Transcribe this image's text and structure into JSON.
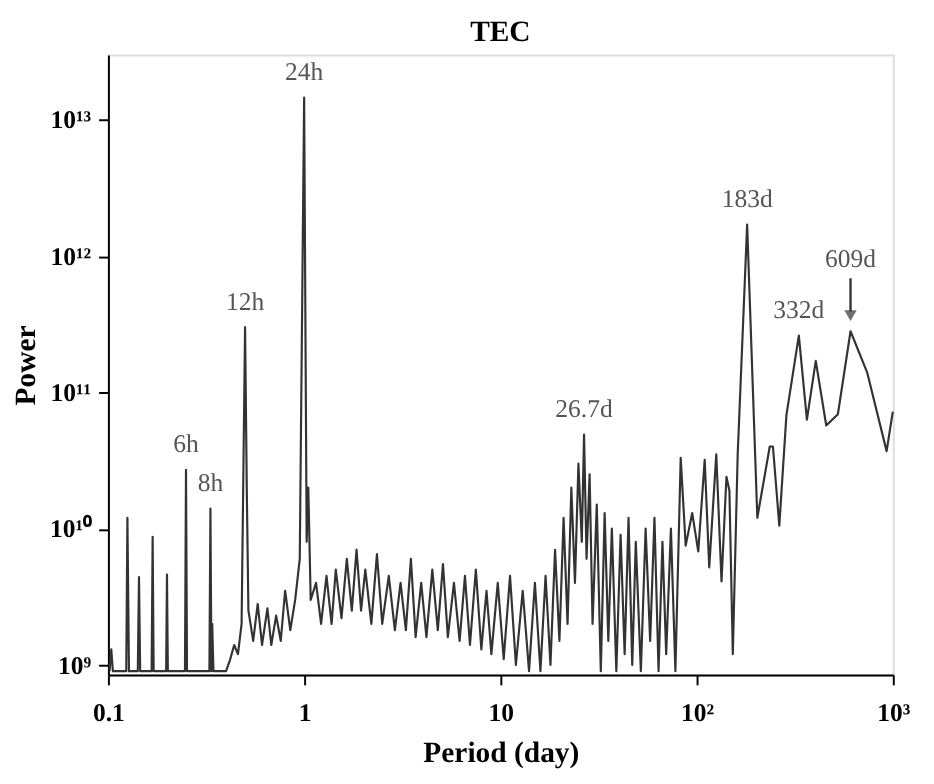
{
  "chart_data": {
    "type": "line",
    "title": "TEC",
    "xlabel": "Period (day)",
    "ylabel": "Power",
    "log": "xy",
    "grid": false,
    "marker": "none",
    "line_style": "solid",
    "xlim": [
      0.1,
      1000
    ],
    "ylim": [
      850000000,
      30000000000000
    ],
    "xticks": [
      0.1,
      1,
      10,
      {
        "value": 100,
        "label": "10²"
      },
      {
        "value": 1000,
        "label": "10³"
      }
    ],
    "yticks": [
      {
        "value": 1000000000,
        "label": "10⁹"
      },
      {
        "value": 10000000000,
        "label": "10¹⁰"
      },
      {
        "value": 100000000000,
        "label": "10¹¹"
      },
      {
        "value": 1000000000000,
        "label": "10¹²"
      },
      {
        "value": 10000000000000,
        "label": "10¹³"
      }
    ],
    "annotations": [
      {
        "text": "6h",
        "x": 0.25,
        "y": 27000000000
      },
      {
        "text": "8h",
        "x": 0.333,
        "y": 14000000000
      },
      {
        "text": "12h",
        "x": 0.5,
        "y": 300000000000
      },
      {
        "text": "24h",
        "x": 1,
        "y": 14500000000000
      },
      {
        "text": "26.7d",
        "x": 26.7,
        "y": 49000000000
      },
      {
        "text": "183d",
        "x": 181,
        "y": 1700000000000
      },
      {
        "text": "332d",
        "x": 332,
        "y": 260000000000
      },
      {
        "text": "609d",
        "x": 609,
        "y": 280000000000
      }
    ],
    "series": [
      {
        "color": "#333333",
        "x": [
          0.102,
          0.104,
          0.106,
          0.124,
          0.1257,
          0.128,
          0.142,
          0.144,
          0.146,
          0.167,
          0.169,
          0.171,
          0.198,
          0.2,
          0.202,
          0.247,
          0.25,
          0.253,
          0.329,
          0.333,
          0.337,
          0.34,
          0.345,
          0.4,
          0.42,
          0.44,
          0.46,
          0.48,
          0.5,
          0.51,
          0.52,
          0.55,
          0.58,
          0.61,
          0.65,
          0.68,
          0.72,
          0.76,
          0.8,
          0.85,
          0.9,
          0.95,
          1.0,
          1.03,
          1.05,
          1.08,
          1.15,
          1.22,
          1.3,
          1.38,
          1.45,
          1.55,
          1.65,
          1.75,
          1.85,
          1.95,
          2.05,
          2.2,
          2.35,
          2.5,
          2.7,
          2.9,
          3.1,
          3.3,
          3.5,
          3.7,
          3.95,
          4.2,
          4.5,
          4.8,
          5.1,
          5.4,
          5.8,
          6.2,
          6.6,
          7.0,
          7.5,
          8.0,
          8.5,
          9.0,
          9.7,
          10.4,
          11.2,
          12,
          13,
          14,
          15,
          16,
          17,
          18,
          19,
          20,
          21,
          22,
          23,
          24,
          25,
          26,
          26.7,
          27.5,
          28.5,
          29.5,
          31,
          32.5,
          34,
          35.5,
          37,
          39,
          41,
          43,
          45,
          47,
          49,
          52,
          55,
          58,
          61,
          64,
          67,
          70,
          74,
          78,
          83,
          88,
          95,
          102,
          110,
          116,
          126,
          134,
          142,
          147,
          153,
          162,
          181,
          204,
          236,
          245,
          264,
          287,
          332,
          365,
          405,
          458,
          525,
          609,
          740,
          930,
          1000
        ],
        "values": [
          900000000,
          1300000000,
          900000000,
          900000000,
          12000000000,
          900000000,
          900000000,
          4400000000,
          900000000,
          900000000,
          8700000000,
          900000000,
          900000000,
          4600000000,
          900000000,
          900000000,
          27000000000,
          900000000,
          900000000,
          14000000000,
          900000000,
          2000000000,
          900000000,
          900000000,
          1100000000,
          1400000000,
          1200000000,
          2000000000,
          300000000000,
          20000000000,
          2500000000,
          1500000000,
          2800000000,
          1400000000,
          2600000000,
          1400000000,
          2300000000,
          1500000000,
          3500000000,
          1800000000,
          3000000000,
          6000000000,
          14500000000000,
          8000000000,
          20000000000,
          3000000000,
          4000000000,
          2000000000,
          4500000000,
          2000000000,
          5000000000,
          2200000000,
          6000000000,
          2500000000,
          7000000000,
          2500000000,
          5000000000,
          2000000000,
          6500000000,
          2000000000,
          4500000000,
          1800000000,
          4000000000,
          1800000000,
          6000000000,
          1600000000,
          4000000000,
          1600000000,
          5000000000,
          1800000000,
          5500000000,
          1600000000,
          4000000000,
          1500000000,
          4500000000,
          1400000000,
          5000000000,
          1300000000,
          3500000000,
          1200000000,
          4000000000,
          1100000000,
          4500000000,
          1000000000,
          3500000000,
          900000000,
          4000000000,
          900000000,
          4500000000,
          1000000000,
          7000000000,
          1500000000,
          12000000000,
          2000000000,
          20000000000,
          4000000000,
          30000000000,
          8000000000,
          49000000000,
          6000000000,
          25000000000,
          2000000000,
          15000000000,
          900000000,
          13000000000,
          1500000000,
          10000000000,
          900000000,
          9000000000,
          1200000000,
          12000000000,
          1000000000,
          8000000000,
          900000000,
          10000000000,
          1500000000,
          12000000000,
          900000000,
          8000000000,
          1200000000,
          10000000000,
          900000000,
          33000000000,
          7500000000,
          13000000000,
          6800000000,
          32000000000,
          5200000000,
          35000000000,
          4100000000,
          24000000000,
          19000000000,
          1200000000,
          35000000000,
          1700000000000,
          12000000000,
          40000000000,
          40000000000,
          10500000000,
          68000000000,
          260000000000,
          63000000000,
          170000000000,
          57000000000,
          69000000000,
          280000000000,
          140000000000,
          37000000000,
          72000000000
        ]
      }
    ]
  }
}
